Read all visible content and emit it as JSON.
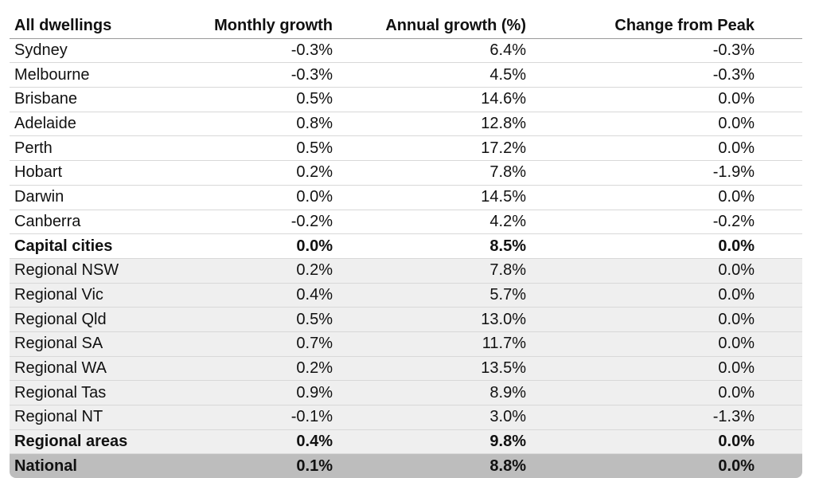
{
  "table": {
    "header": [
      "All dwellings",
      "Monthly growth",
      "Annual growth (%)",
      "Change from Peak"
    ],
    "rows": [
      [
        "Sydney",
        "-0.3%",
        "6.4%",
        "-0.3%"
      ],
      [
        "Melbourne",
        "-0.3%",
        "4.5%",
        "-0.3%"
      ],
      [
        "Brisbane",
        "0.5%",
        "14.6%",
        "0.0%"
      ],
      [
        "Adelaide",
        "0.8%",
        "12.8%",
        "0.0%"
      ],
      [
        "Perth",
        "0.5%",
        "17.2%",
        "0.0%"
      ],
      [
        "Hobart",
        "0.2%",
        "7.8%",
        "-1.9%"
      ],
      [
        "Darwin",
        "0.0%",
        "14.5%",
        "0.0%"
      ],
      [
        "Canberra",
        "-0.2%",
        "4.2%",
        "-0.2%"
      ],
      [
        "Capital cities",
        "0.0%",
        "8.5%",
        "0.0%"
      ],
      [
        "Regional NSW",
        "0.2%",
        "7.8%",
        "0.0%"
      ],
      [
        "Regional Vic",
        "0.4%",
        "5.7%",
        "0.0%"
      ],
      [
        "Regional Qld",
        "0.5%",
        "13.0%",
        "0.0%"
      ],
      [
        "Regional SA",
        "0.7%",
        "11.7%",
        "0.0%"
      ],
      [
        "Regional WA",
        "0.2%",
        "13.5%",
        "0.0%"
      ],
      [
        "Regional Tas",
        "0.9%",
        "8.9%",
        "0.0%"
      ],
      [
        "Regional NT",
        "-0.1%",
        "3.0%",
        "-1.3%"
      ],
      [
        "Regional areas",
        "0.4%",
        "9.8%",
        "0.0%"
      ],
      [
        "National",
        "0.1%",
        "8.8%",
        "0.0%"
      ]
    ]
  }
}
